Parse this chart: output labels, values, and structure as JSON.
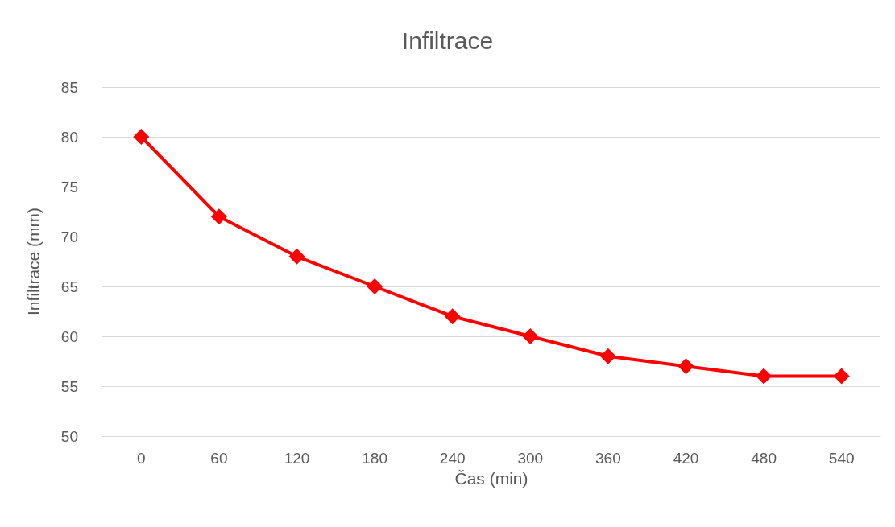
{
  "chart_data": {
    "type": "line",
    "title": "Infiltrace",
    "xlabel": "Čas (min)",
    "ylabel": "Infiltrace (mm)",
    "categories": [
      "0",
      "60",
      "120",
      "180",
      "240",
      "300",
      "360",
      "420",
      "480",
      "540"
    ],
    "series": [
      {
        "color": "#ff0000",
        "values": [
          80,
          72,
          68,
          65,
          62,
          60,
          58,
          57,
          56,
          56
        ]
      }
    ],
    "ylim": [
      50,
      85
    ],
    "yticks": [
      50,
      55,
      60,
      65,
      70,
      75,
      80,
      85
    ],
    "grid": "y",
    "marker": "diamond",
    "line_style": "solid"
  }
}
